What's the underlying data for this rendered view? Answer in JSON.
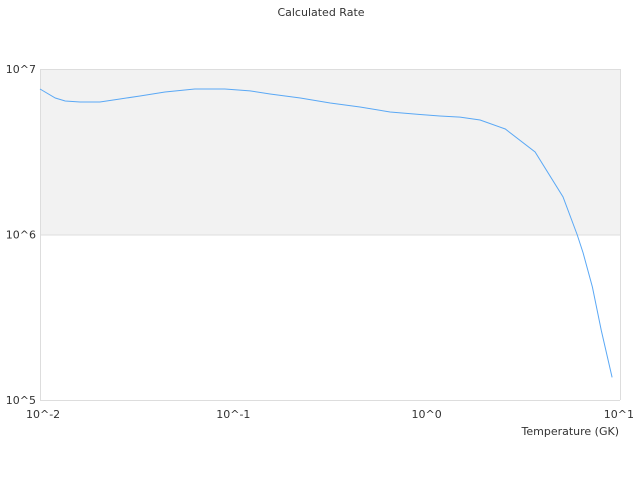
{
  "chart_data": {
    "type": "line",
    "title": "Calculated Rate",
    "xlabel": "Temperature (GK)",
    "ylabel": "",
    "x_scale": "log",
    "y_scale": "log",
    "xlim": [
      0.01,
      10
    ],
    "ylim": [
      100000,
      10000000
    ],
    "x_ticks": [
      {
        "v": 0.01,
        "label": "10^-2"
      },
      {
        "v": 0.1,
        "label": "10^-1"
      },
      {
        "v": 1,
        "label": "10^0"
      },
      {
        "v": 10,
        "label": "10^1"
      }
    ],
    "y_ticks": [
      {
        "v": 100000,
        "label": "10^5"
      },
      {
        "v": 1000000,
        "label": "10^6"
      },
      {
        "v": 10000000,
        "label": "10^7"
      }
    ],
    "band_color": "#f2f2f2",
    "line_color": "#5aa8f5",
    "series": [
      {
        "x": [
          0.01,
          0.012,
          0.0135,
          0.0161,
          0.0204,
          0.0259,
          0.0329,
          0.0443,
          0.0632,
          0.0903,
          0.122,
          0.155,
          0.222,
          0.317,
          0.452,
          0.647,
          0.925,
          1.17,
          1.49,
          1.89,
          2.55,
          3.64,
          5.07,
          6.0,
          6.44,
          7.2,
          8.0,
          9.1
        ],
        "y": [
          7570000,
          6680000,
          6410000,
          6320000,
          6320000,
          6590000,
          6870000,
          7260000,
          7570000,
          7570000,
          7370000,
          7060000,
          6680000,
          6230000,
          5890000,
          5500000,
          5310000,
          5200000,
          5120000,
          4920000,
          4340000,
          3150000,
          1690000,
          1000000,
          774000,
          482000,
          263000,
          137000
        ]
      }
    ]
  }
}
